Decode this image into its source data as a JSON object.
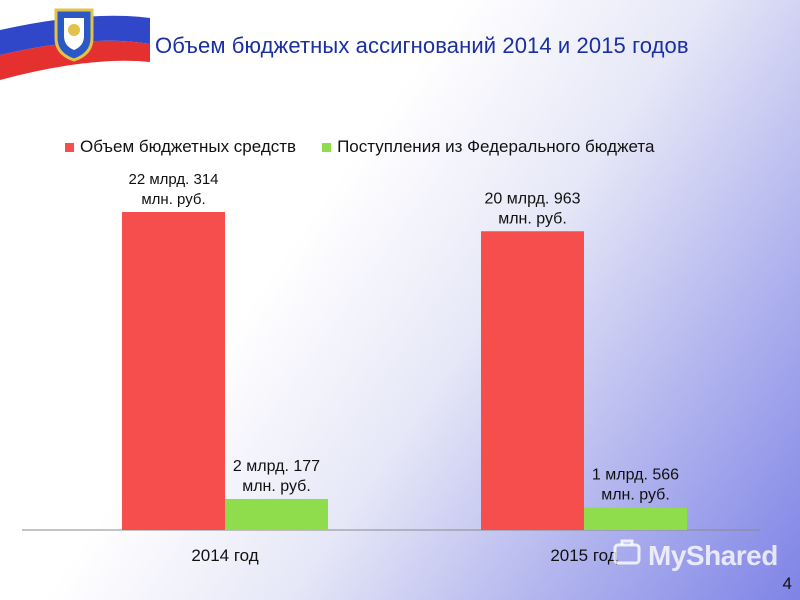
{
  "title": "Объем бюджетных ассигнований 2014 и 2015 годов",
  "page_number": "4",
  "watermark": "MyShared",
  "colors": {
    "series_red": "#f64d4d",
    "series_green": "#8fdc4c",
    "title": "#1a2fa0"
  },
  "chart_data": {
    "type": "bar",
    "categories": [
      "2014 год",
      "2015 год"
    ],
    "series": [
      {
        "name": "Объем бюджетных средств",
        "color": "#f64d4d",
        "values": [
          22.314,
          20.963
        ],
        "labels": [
          "22 млрд. 314 млн. руб.",
          "20 млрд. 963 млн. руб."
        ]
      },
      {
        "name": "Поступления из Федерального бюджета",
        "color": "#8fdc4c",
        "values": [
          2.177,
          1.566
        ],
        "labels": [
          "2 млрд. 177 млн. руб.",
          "1 млрд. 566 млн. руб."
        ]
      }
    ],
    "ylim": [
      0,
      22.314
    ],
    "legend_position": "top",
    "grid": false
  }
}
